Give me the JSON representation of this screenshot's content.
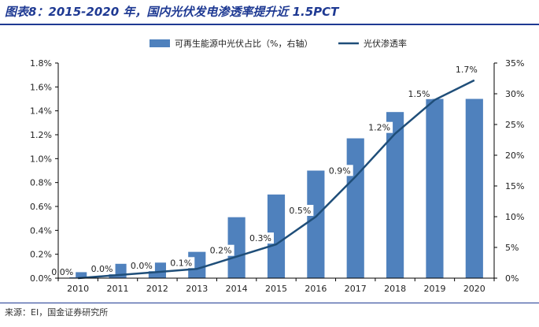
{
  "title": "图表8：2015-2020 年，国内光伏发电渗透率提升近 1.5PCT",
  "source": "来源：EI，国金证券研究所",
  "colors": {
    "bar": "#4f81bd",
    "line": "#1f4e79",
    "title": "#1f3a93",
    "text": "#222222"
  },
  "chart_data": {
    "type": "bar",
    "title": "图表8：2015-2020 年，国内光伏发电渗透率提升近 1.5PCT",
    "categories": [
      "2010",
      "2011",
      "2012",
      "2013",
      "2014",
      "2015",
      "2016",
      "2017",
      "2018",
      "2019",
      "2020"
    ],
    "series": [
      {
        "name": "可再生能源中光伏占比（%，右轴）",
        "type": "bar",
        "axis": "left",
        "values": [
          0.05,
          0.12,
          0.13,
          0.22,
          0.51,
          0.7,
          0.9,
          1.17,
          1.39,
          1.5,
          1.5
        ]
      },
      {
        "name": "光伏渗透率",
        "type": "line",
        "axis": "right",
        "values": [
          0.0,
          0.0,
          0.0,
          0.1,
          0.2,
          0.3,
          0.5,
          0.9,
          1.2,
          1.5,
          1.7
        ],
        "plot_percent": [
          0,
          0.5,
          1,
          1.5,
          3.5,
          5.5,
          10,
          16.5,
          23.5,
          29,
          32.2
        ],
        "labels": [
          "0.0%",
          "0.0%",
          "0.0%",
          "0.1%",
          "0.2%",
          "0.3%",
          "0.5%",
          "0.9%",
          "1.2%",
          "1.5%",
          "1.7%"
        ]
      }
    ],
    "y_left": {
      "ylim": [
        0,
        1.8
      ],
      "ticks": [
        "0.0%",
        "0.2%",
        "0.4%",
        "0.6%",
        "0.8%",
        "1.0%",
        "1.2%",
        "1.4%",
        "1.6%",
        "1.8%"
      ]
    },
    "y_right": {
      "ylim": [
        0,
        35
      ],
      "ticks": [
        "0%",
        "5%",
        "10%",
        "15%",
        "20%",
        "25%",
        "30%",
        "35%"
      ]
    },
    "legend_position": "top-center",
    "grid": false
  }
}
